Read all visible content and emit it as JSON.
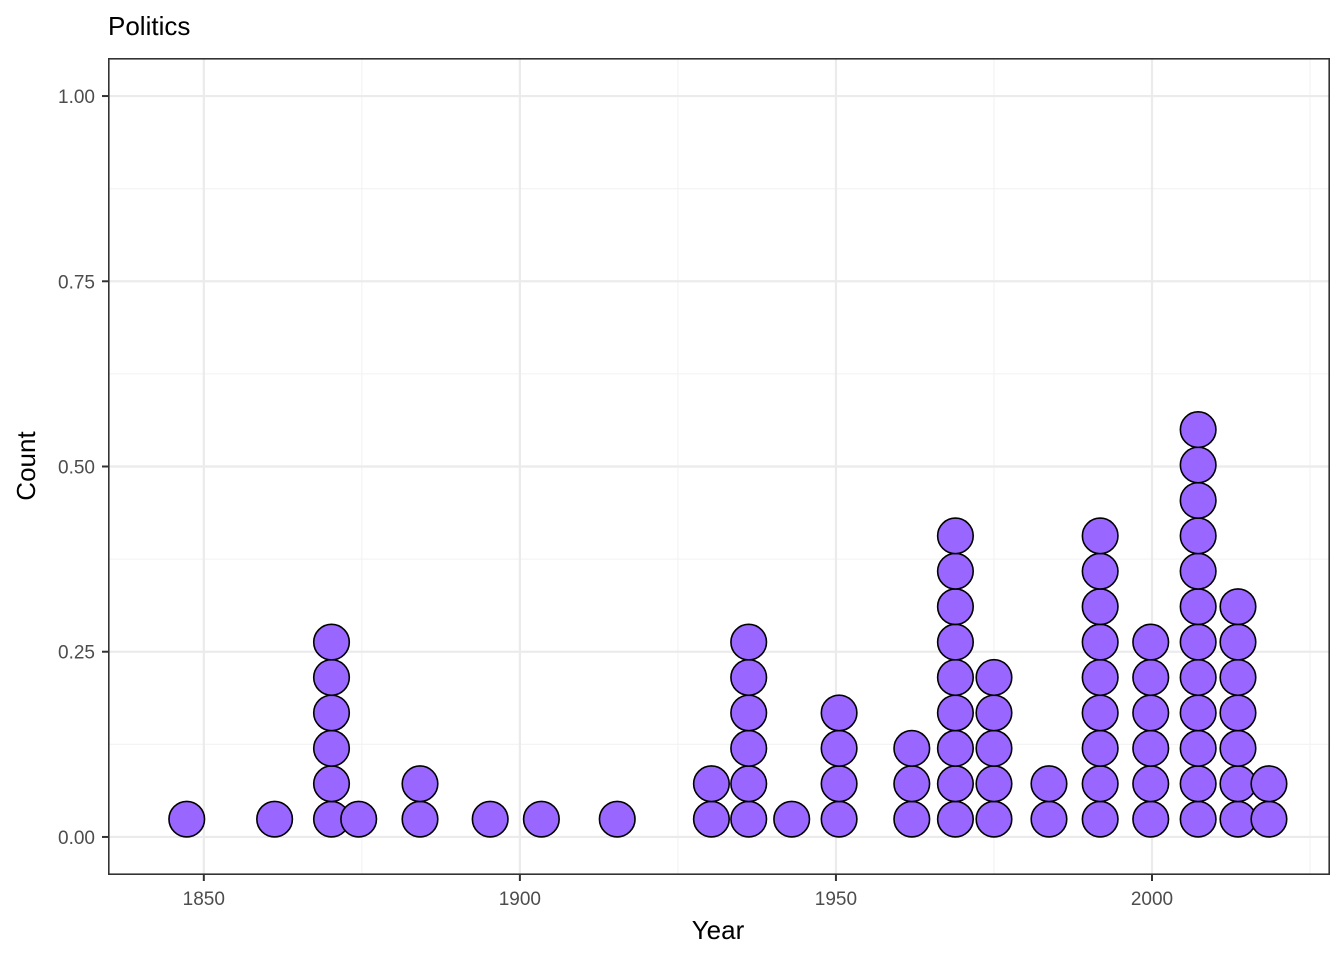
{
  "chart_data": {
    "type": "dotplot",
    "title": "Politics",
    "xlabel": "Year",
    "ylabel": "Count",
    "xlim": [
      1835,
      2028
    ],
    "ylim": [
      -0.05,
      1.05
    ],
    "x_ticks": [
      1850,
      1900,
      1950,
      2000
    ],
    "x_tick_labels": [
      "1850",
      "1900",
      "1950",
      "2000"
    ],
    "y_ticks": [
      0.0,
      0.25,
      0.5,
      0.75,
      1.0
    ],
    "y_tick_labels": [
      "0.00",
      "0.25",
      "0.50",
      "0.75",
      "1.00"
    ],
    "x_minor_ticks": [
      1875,
      1925,
      1975,
      2025
    ],
    "y_minor_ticks": [
      0.125,
      0.375,
      0.625,
      0.875
    ],
    "grid": true,
    "dot_fill": "#9966FF",
    "dot_stroke": "#000000",
    "stack_step": 0.0478,
    "stack_base": 0.024,
    "dot_radius_data": 0.024,
    "stacks": [
      {
        "x": 1847.3,
        "count": 1
      },
      {
        "x": 1861.2,
        "count": 1
      },
      {
        "x": 1870.2,
        "count": 6
      },
      {
        "x": 1874.5,
        "count": 1
      },
      {
        "x": 1884.2,
        "count": 2
      },
      {
        "x": 1895.3,
        "count": 1
      },
      {
        "x": 1903.4,
        "count": 1
      },
      {
        "x": 1915.4,
        "count": 1
      },
      {
        "x": 1930.3,
        "count": 2
      },
      {
        "x": 1936.2,
        "count": 6
      },
      {
        "x": 1943.0,
        "count": 1
      },
      {
        "x": 1950.5,
        "count": 4
      },
      {
        "x": 1962.0,
        "count": 3
      },
      {
        "x": 1968.9,
        "count": 9
      },
      {
        "x": 1975.0,
        "count": 5
      },
      {
        "x": 1983.7,
        "count": 2
      },
      {
        "x": 1991.8,
        "count": 9
      },
      {
        "x": 1999.8,
        "count": 6
      },
      {
        "x": 2007.3,
        "count": 12
      },
      {
        "x": 2013.6,
        "count": 7
      },
      {
        "x": 2018.5,
        "count": 2
      }
    ],
    "colors": {
      "background": "#ffffff",
      "grid_major": "#ebebeb",
      "grid_minor": "#f2f2f2",
      "border": "#333333",
      "tick_text": "#4d4d4d"
    }
  }
}
